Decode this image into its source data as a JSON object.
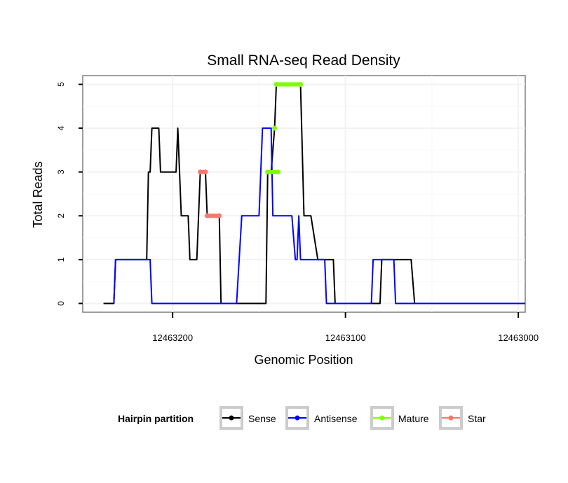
{
  "chart_data": {
    "type": "line",
    "title": "Small RNA-seq Read Density",
    "xlabel": "Genomic Position",
    "ylabel": "Total Reads",
    "x_reversed": true,
    "xlim": [
      12463252,
      12462996
    ],
    "ylim": [
      -0.2,
      5.2
    ],
    "x_ticks": [
      12463200,
      12463100,
      12463000
    ],
    "x_tick_labels": [
      "12463200",
      "12463100",
      "12463000"
    ],
    "y_ticks": [
      0,
      1,
      2,
      3,
      4,
      5
    ],
    "y_tick_labels": [
      "0",
      "1",
      "2",
      "3",
      "4",
      "5"
    ],
    "grid": true,
    "legend": {
      "title": "Hairpin partition",
      "position": "bottom",
      "entries": [
        {
          "label": "Sense",
          "color": "#000000"
        },
        {
          "label": "Antisense",
          "color": "#0000ff"
        },
        {
          "label": "Mature",
          "color": "#7fff00"
        },
        {
          "label": "Star",
          "color": "#f8766d"
        }
      ]
    },
    "series": [
      {
        "name": "Sense",
        "color": "#000000",
        "points": [
          [
            12463240,
            0
          ],
          [
            12463234,
            0
          ],
          [
            12463233,
            1
          ],
          [
            12463215,
            1
          ],
          [
            12463214,
            3
          ],
          [
            12463213,
            3
          ],
          [
            12463212,
            4
          ],
          [
            12463208,
            4
          ],
          [
            12463207,
            3
          ],
          [
            12463198,
            3
          ],
          [
            12463197,
            4
          ],
          [
            12463195,
            2
          ],
          [
            12463191,
            2
          ],
          [
            12463190,
            1
          ],
          [
            12463186,
            1
          ],
          [
            12463184,
            3
          ],
          [
            12463181,
            3
          ],
          [
            12463180,
            2
          ],
          [
            12463173,
            2
          ],
          [
            12463172,
            0
          ],
          [
            12463146,
            0
          ],
          [
            12463145,
            3
          ],
          [
            12463143,
            3
          ],
          [
            12463141,
            4
          ],
          [
            12463140,
            5
          ],
          [
            12463126,
            5
          ],
          [
            12463124,
            2
          ],
          [
            12463120,
            2
          ],
          [
            12463116,
            1
          ],
          [
            12463107,
            1
          ],
          [
            12463106,
            0
          ],
          [
            12463080,
            0
          ],
          [
            12463079,
            1
          ],
          [
            12463070,
            1
          ],
          [
            12463062,
            1
          ],
          [
            12463060,
            0
          ],
          [
            12462996,
            0
          ]
        ]
      },
      {
        "name": "Antisense",
        "color": "#0000ff",
        "points": [
          [
            12463234,
            0
          ],
          [
            12463233,
            1
          ],
          [
            12463213,
            1
          ],
          [
            12463212,
            0
          ],
          [
            12463163,
            0
          ],
          [
            12463160,
            2
          ],
          [
            12463150,
            2
          ],
          [
            12463148,
            4
          ],
          [
            12463143,
            4
          ],
          [
            12463142,
            2
          ],
          [
            12463131,
            2
          ],
          [
            12463129,
            1
          ],
          [
            12463128,
            1
          ],
          [
            12463127,
            2
          ],
          [
            12463126,
            1
          ],
          [
            12463112,
            1
          ],
          [
            12463111,
            0
          ],
          [
            12463085,
            0
          ],
          [
            12463084,
            1
          ],
          [
            12463072,
            1
          ],
          [
            12463071,
            0
          ],
          [
            12462996,
            0
          ]
        ]
      },
      {
        "name": "Mature",
        "color": "#7fff00",
        "points": [
          [
            12463145,
            3
          ],
          [
            12463139,
            3
          ],
          null,
          [
            12463141,
            4
          ],
          null,
          [
            12463140,
            5
          ],
          [
            12463126,
            5
          ]
        ]
      },
      {
        "name": "Star",
        "color": "#f8766d",
        "points": [
          [
            12463184,
            3
          ],
          [
            12463181,
            3
          ],
          null,
          [
            12463180,
            2
          ],
          [
            12463173,
            2
          ]
        ]
      }
    ]
  }
}
